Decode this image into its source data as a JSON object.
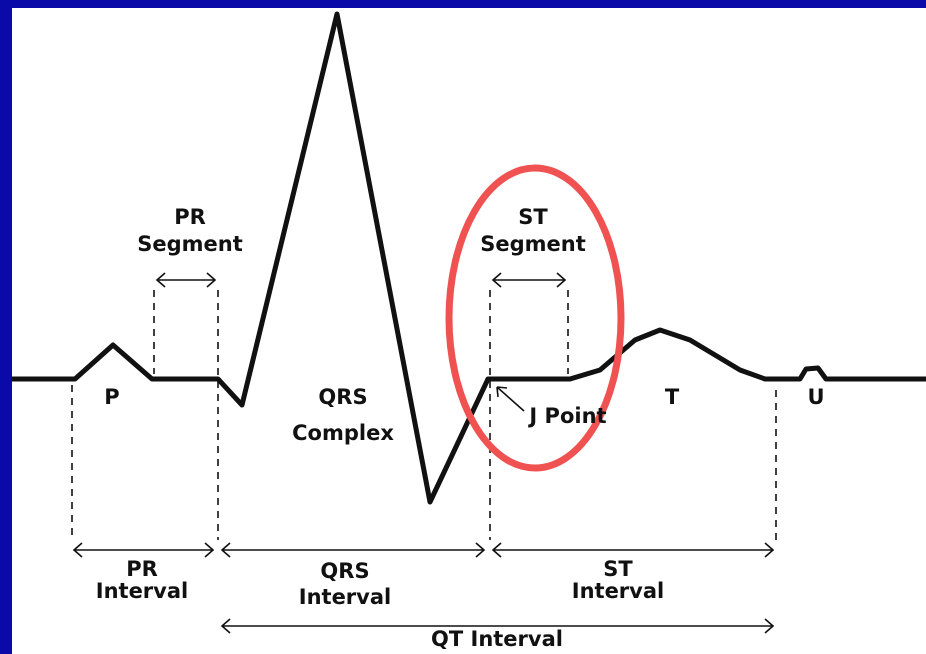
{
  "waves": {
    "p": "P",
    "qrs": [
      "QRS",
      "Complex"
    ],
    "t": "T",
    "u": "U",
    "j_point": "J Point"
  },
  "segments": {
    "pr": [
      "PR",
      "Segment"
    ],
    "st": [
      "ST",
      "Segment"
    ]
  },
  "intervals": {
    "pr": [
      "PR",
      "Interval"
    ],
    "qrs": [
      "QRS",
      "Interval"
    ],
    "st": [
      "ST",
      "Interval"
    ],
    "qt": "QT Interval"
  }
}
